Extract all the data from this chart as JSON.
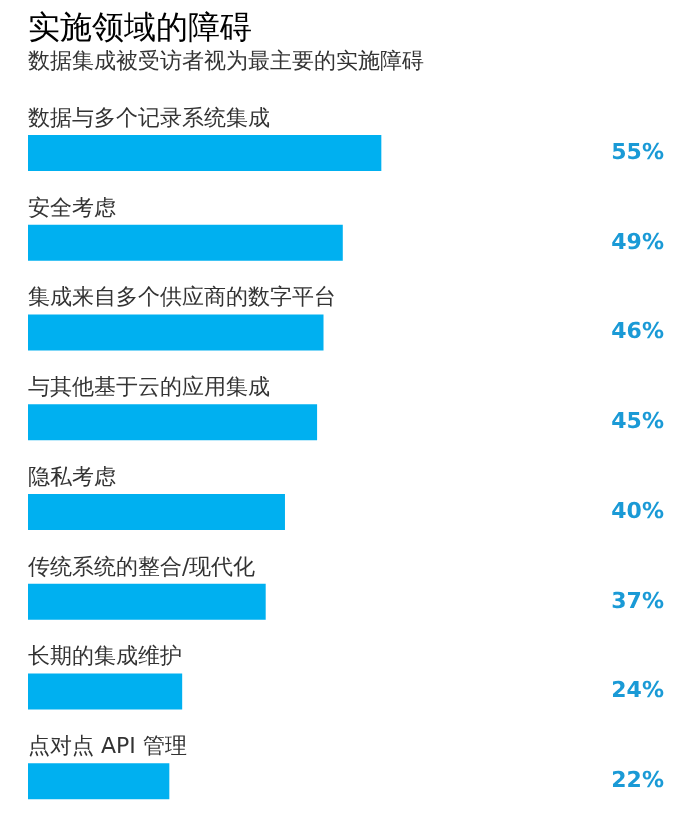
{
  "chart_data": {
    "type": "bar",
    "orientation": "horizontal",
    "title": "实施领域的障碍",
    "subtitle": "数据集成被受访者视为最主要的实施障碍",
    "categories": [
      "数据与多个记录系统集成",
      "安全考虑",
      "集成来自多个供应商的数字平台",
      "与其他基于云的应用集成",
      "隐私考虑",
      "传统系统的整合/现代化",
      "长期的集成维护",
      "点对点 API 管理"
    ],
    "values": [
      55,
      49,
      46,
      45,
      40,
      37,
      24,
      22
    ],
    "value_labels": [
      "55%",
      "49%",
      "46%",
      "45%",
      "40%",
      "37%",
      "24%",
      "22%"
    ],
    "color": "#00b0f0",
    "tick_labels": false,
    "grid": false
  }
}
